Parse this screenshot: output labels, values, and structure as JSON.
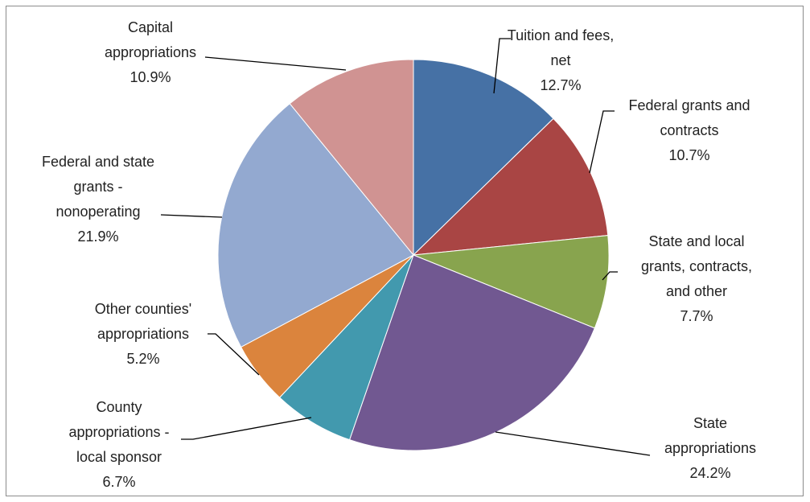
{
  "chart_data": {
    "type": "pie",
    "title": "",
    "slices": [
      {
        "label_lines": [
          "Tuition and fees,",
          "net"
        ],
        "value": 12.7,
        "value_label": "12.7%",
        "color": "#4671a5"
      },
      {
        "label_lines": [
          "Federal grants and",
          "contracts"
        ],
        "value": 10.7,
        "value_label": "10.7%",
        "color": "#a94544"
      },
      {
        "label_lines": [
          "State and local",
          "grants, contracts,",
          "and other"
        ],
        "value": 7.7,
        "value_label": "7.7%",
        "color": "#88a44e"
      },
      {
        "label_lines": [
          "State",
          "appropriations"
        ],
        "value": 24.2,
        "value_label": "24.2%",
        "color": "#715891"
      },
      {
        "label_lines": [
          "County",
          "appropriations -",
          "local sponsor"
        ],
        "value": 6.7,
        "value_label": "6.7%",
        "color": "#4299ae"
      },
      {
        "label_lines": [
          "Other counties'",
          "appropriations"
        ],
        "value": 5.2,
        "value_label": "5.2%",
        "color": "#db843d"
      },
      {
        "label_lines": [
          "Federal and state",
          "grants -",
          "nonoperating"
        ],
        "value": 21.9,
        "value_label": "21.9%",
        "color": "#93a9d0"
      },
      {
        "label_lines": [
          "Capital",
          "appropriations"
        ],
        "value": 10.9,
        "value_label": "10.9%",
        "color": "#d09392"
      }
    ]
  }
}
